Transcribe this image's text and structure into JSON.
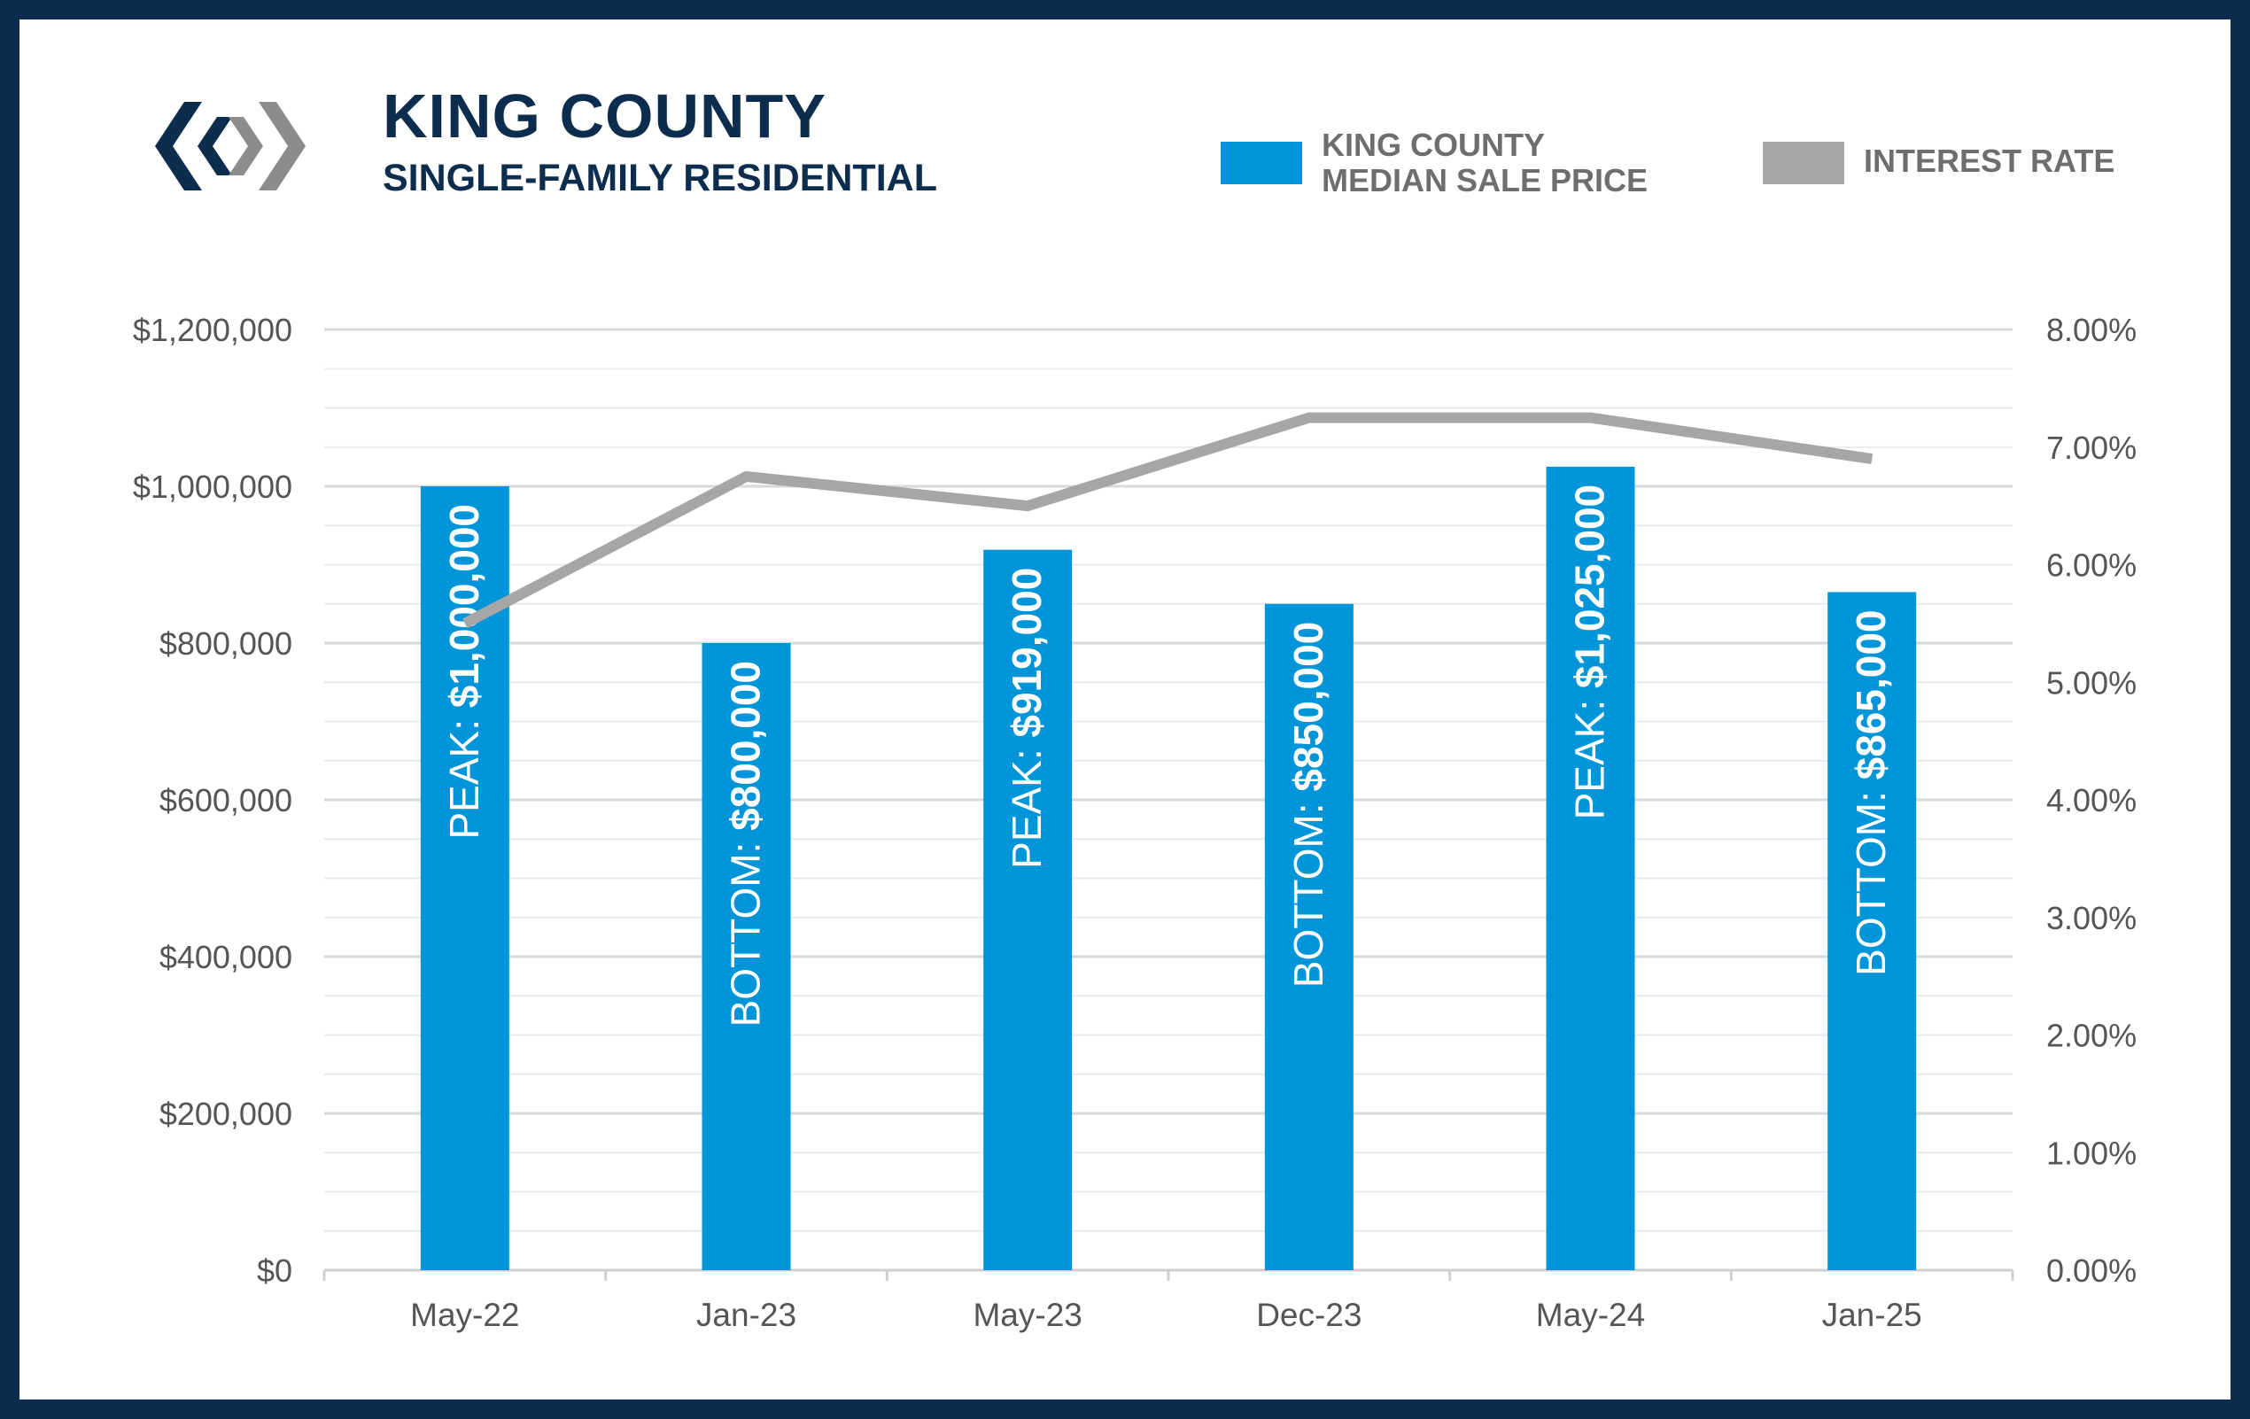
{
  "header": {
    "title": "KING COUNTY",
    "subtitle": "SINGLE-FAMILY RESIDENTIAL"
  },
  "legend": {
    "bars_line1": "KING COUNTY",
    "bars_line2": "MEDIAN SALE PRICE",
    "line_label": "INTEREST RATE"
  },
  "colors": {
    "frame": "#0d2d4f",
    "bars": "#0095d9",
    "line": "#a6a6a6",
    "axis_text": "#555555",
    "grid": "#d9d9d9",
    "bar_label_text": "#ffffff"
  },
  "icons": {
    "logo": "interlocking-chevrons-logo"
  },
  "chart_data": {
    "type": "bar",
    "categories": [
      "May-22",
      "Jan-23",
      "May-23",
      "Dec-23",
      "May-24",
      "Jan-25"
    ],
    "series": [
      {
        "name": "KING COUNTY MEDIAN SALE PRICE",
        "type": "bar",
        "axis": "left",
        "values": [
          1000000,
          800000,
          919000,
          850000,
          1025000,
          865000
        ]
      },
      {
        "name": "INTEREST RATE",
        "type": "line",
        "axis": "right",
        "values": [
          5.5,
          6.75,
          6.5,
          7.25,
          7.25,
          6.9
        ]
      }
    ],
    "bar_labels": [
      {
        "prefix": "PEAK: ",
        "value": "$1,000,000"
      },
      {
        "prefix": "BOTTOM: ",
        "value": "$800,000"
      },
      {
        "prefix": "PEAK: ",
        "value": "$919,000"
      },
      {
        "prefix": "BOTTOM: ",
        "value": "$850,000"
      },
      {
        "prefix": "PEAK: ",
        "value": "$1,025,000"
      },
      {
        "prefix": "BOTTOM: ",
        "value": "$865,000"
      }
    ],
    "y_left": {
      "range": [
        0,
        1200000
      ],
      "ticks": [
        0,
        200000,
        400000,
        600000,
        800000,
        1000000,
        1200000
      ],
      "tick_labels": [
        "$0",
        "$200,000",
        "$400,000",
        "$600,000",
        "$800,000",
        "$1,000,000",
        "$1,200,000"
      ]
    },
    "y_right": {
      "range": [
        0,
        8
      ],
      "ticks": [
        0,
        1,
        2,
        3,
        4,
        5,
        6,
        7,
        8
      ],
      "tick_labels": [
        "0.00%",
        "1.00%",
        "2.00%",
        "3.00%",
        "4.00%",
        "5.00%",
        "6.00%",
        "7.00%",
        "8.00%"
      ]
    },
    "minor_grid_step": 50000,
    "grid": true,
    "legend_position": "top-right"
  }
}
